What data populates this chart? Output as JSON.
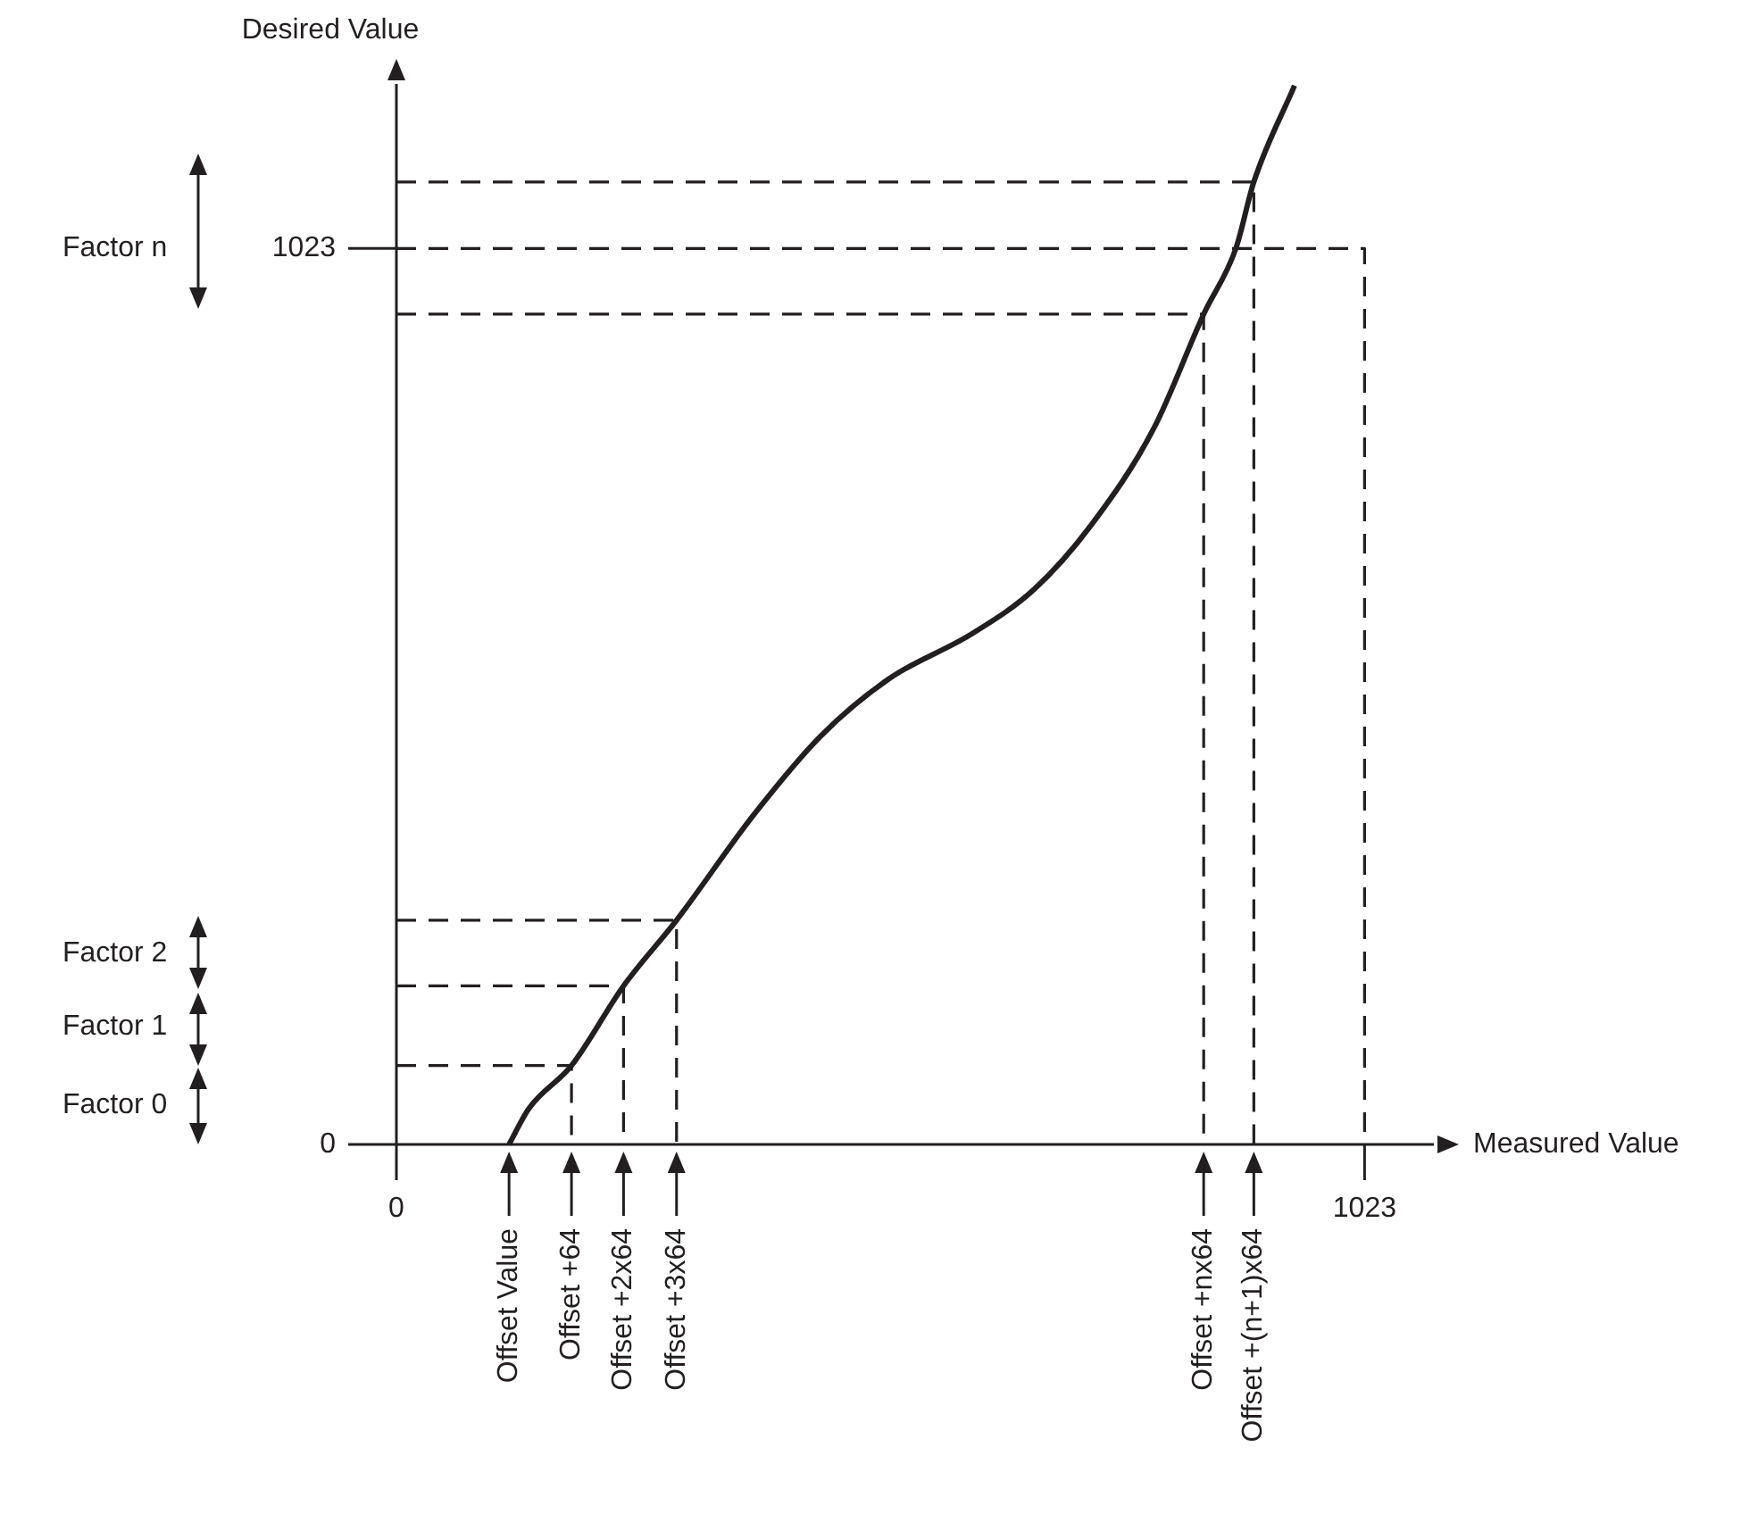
{
  "chart_data": {
    "type": "line",
    "xlabel": "Measured Value",
    "ylabel": "Desired Value",
    "xlim": [
      0,
      1100
    ],
    "ylim": [
      0,
      1215
    ],
    "xticks": [
      0,
      1023
    ],
    "yticks": [
      0,
      1023
    ],
    "marker": "none",
    "series": [
      {
        "color": "#231f20",
        "x": [
          119,
          140,
          185,
          240,
          296,
          378,
          449,
          521,
          608,
          674,
          734,
          800,
          853,
          887,
          906,
          949
        ],
        "values": [
          0,
          41,
          90,
          181,
          256,
          377,
          467,
          532,
          583,
          634,
          707,
          817,
          948,
          1023,
          1099,
          1209
        ]
      },
      {
        "color": "#231f20",
        "line_style": "dashed",
        "x": [
          0,
          185,
          185
        ],
        "values": [
          90,
          90,
          0
        ]
      },
      {
        "color": "#231f20",
        "line_style": "dashed",
        "x": [
          0,
          240,
          240
        ],
        "values": [
          181,
          181,
          0
        ]
      },
      {
        "color": "#231f20",
        "line_style": "dashed",
        "x": [
          0,
          296,
          296
        ],
        "values": [
          256,
          256,
          0
        ]
      },
      {
        "color": "#231f20",
        "line_style": "dashed",
        "x": [
          0,
          853,
          853
        ],
        "values": [
          948,
          948,
          0
        ]
      },
      {
        "color": "#231f20",
        "line_style": "dashed",
        "x": [
          0,
          906,
          906
        ],
        "values": [
          1099,
          1099,
          0
        ]
      },
      {
        "color": "#231f20",
        "line_style": "dashed",
        "x": [
          0,
          1023,
          1023
        ],
        "values": [
          1023,
          1023,
          0
        ]
      }
    ],
    "annotations": [
      "Factor n",
      "Factor 2",
      "Factor 1",
      "Factor 0",
      {
        "text": "Offset Value",
        "x": 119,
        "y": 0
      },
      {
        "text": "Offset +64",
        "x": 185,
        "y": 0
      },
      {
        "text": "Offset +2x64",
        "x": 240,
        "y": 0
      },
      {
        "text": "Offset +3x64",
        "x": 296,
        "y": 0
      },
      {
        "text": "Offset +nx64",
        "x": 853,
        "y": 0
      },
      {
        "text": "Offset +(n+1)x64",
        "x": 906,
        "y": 0
      }
    ]
  }
}
